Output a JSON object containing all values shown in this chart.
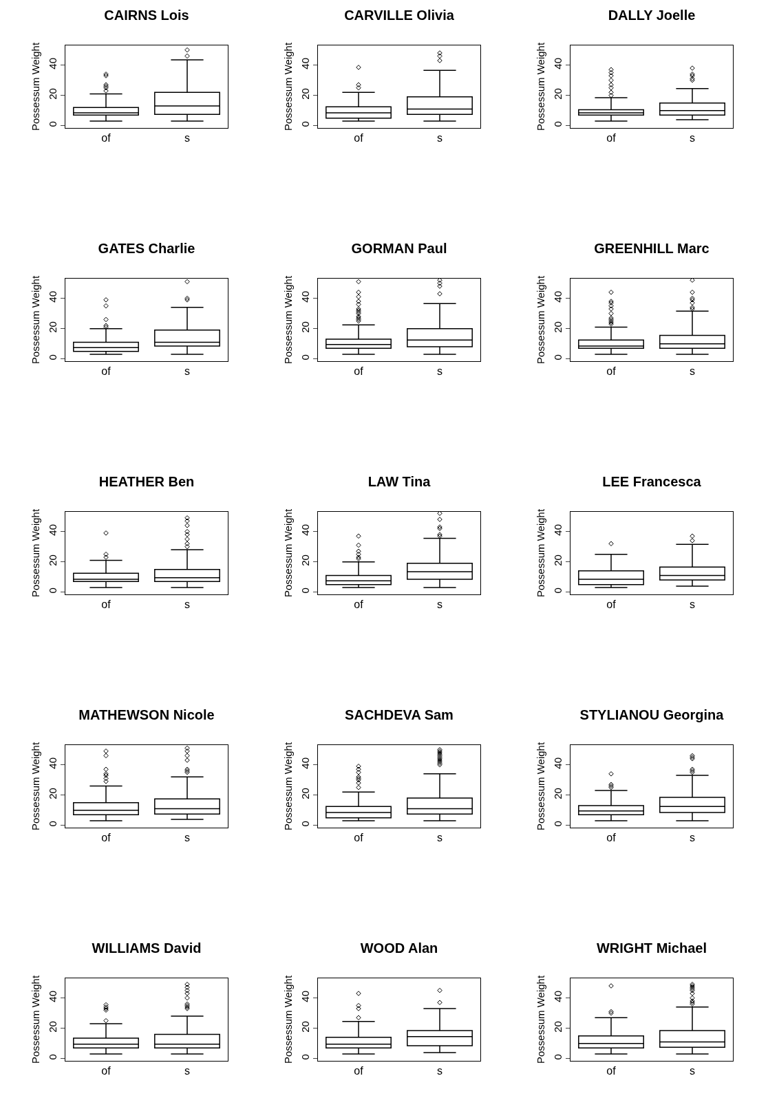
{
  "chart_data": [
    {
      "type": "box",
      "title": "CAIRNS Lois",
      "ylabel": "Possessum Weight",
      "categories": [
        "of",
        "s"
      ],
      "ylim": [
        -1.5,
        53
      ],
      "yticks": [
        0,
        20,
        40
      ],
      "marker": "diamond",
      "boxes": [
        {
          "low": 3,
          "q1": 7,
          "median": 8.5,
          "q3": 12,
          "high": 21,
          "outliers": [
            23,
            25,
            26,
            27,
            33,
            34
          ]
        },
        {
          "low": 3,
          "q1": 7.5,
          "median": 13,
          "q3": 22,
          "high": 43.5,
          "outliers": [
            46,
            50
          ]
        }
      ]
    },
    {
      "type": "box",
      "title": "CARVILLE Olivia",
      "ylabel": "Possessum Weight",
      "categories": [
        "of",
        "s"
      ],
      "ylim": [
        -1.5,
        53
      ],
      "yticks": [
        0,
        20,
        40
      ],
      "marker": "diamond",
      "boxes": [
        {
          "low": 3,
          "q1": 5,
          "median": 8.5,
          "q3": 12.5,
          "high": 22,
          "outliers": [
            25,
            27,
            38.5
          ]
        },
        {
          "low": 3,
          "q1": 7.5,
          "median": 11,
          "q3": 19,
          "high": 36.5,
          "outliers": [
            43,
            46,
            48
          ]
        }
      ]
    },
    {
      "type": "box",
      "title": "DALLY Joelle",
      "ylabel": "Possessum Weight",
      "categories": [
        "of",
        "s"
      ],
      "ylim": [
        -1.5,
        53
      ],
      "yticks": [
        0,
        20,
        40
      ],
      "marker": "diamond",
      "boxes": [
        {
          "low": 3,
          "q1": 7,
          "median": 8.5,
          "q3": 10.5,
          "high": 18.5,
          "outliers": [
            20,
            22,
            25,
            27,
            30,
            33,
            35,
            37
          ]
        },
        {
          "low": 4,
          "q1": 7,
          "median": 10,
          "q3": 15,
          "high": 24.5,
          "outliers": [
            30,
            31,
            33,
            34,
            38
          ]
        }
      ]
    },
    {
      "type": "box",
      "title": "GATES Charlie",
      "ylabel": "Possessum Weight",
      "categories": [
        "of",
        "s"
      ],
      "ylim": [
        -1.5,
        53
      ],
      "yticks": [
        0,
        20,
        40
      ],
      "marker": "diamond",
      "boxes": [
        {
          "low": 3,
          "q1": 5,
          "median": 7.5,
          "q3": 11,
          "high": 20,
          "outliers": [
            21,
            22,
            26,
            35,
            39
          ]
        },
        {
          "low": 3,
          "q1": 8.5,
          "median": 11,
          "q3": 19,
          "high": 34,
          "outliers": [
            39,
            40,
            51
          ]
        }
      ]
    },
    {
      "type": "box",
      "title": "GORMAN Paul",
      "ylabel": "Possessum Weight",
      "categories": [
        "of",
        "s"
      ],
      "ylim": [
        -1.5,
        53
      ],
      "yticks": [
        0,
        20,
        40
      ],
      "marker": "diamond",
      "boxes": [
        {
          "low": 3,
          "q1": 7,
          "median": 9.5,
          "q3": 13,
          "high": 22.5,
          "outliers": [
            25,
            26,
            27,
            28,
            30,
            31,
            32,
            33,
            36,
            38,
            41,
            44,
            51
          ]
        },
        {
          "low": 3,
          "q1": 8,
          "median": 12.5,
          "q3": 20,
          "high": 36.5,
          "outliers": [
            43,
            48,
            50,
            52
          ]
        }
      ]
    },
    {
      "type": "box",
      "title": "GREENHILL Marc",
      "ylabel": "Possessum Weight",
      "categories": [
        "of",
        "s"
      ],
      "ylim": [
        -1.5,
        53
      ],
      "yticks": [
        0,
        20,
        40
      ],
      "marker": "diamond",
      "boxes": [
        {
          "low": 3,
          "q1": 7,
          "median": 8.5,
          "q3": 12.5,
          "high": 21,
          "outliers": [
            23,
            24,
            25,
            26,
            27,
            30,
            33,
            35,
            37,
            38,
            44
          ]
        },
        {
          "low": 3,
          "q1": 7,
          "median": 10,
          "q3": 15.5,
          "high": 31.5,
          "outliers": [
            33,
            34,
            37,
            39,
            40,
            44,
            52
          ]
        }
      ]
    },
    {
      "type": "box",
      "title": "HEATHER Ben",
      "ylabel": "Possessum Weight",
      "categories": [
        "of",
        "s"
      ],
      "ylim": [
        -1.5,
        53
      ],
      "yticks": [
        0,
        20,
        40
      ],
      "marker": "diamond",
      "boxes": [
        {
          "low": 3,
          "q1": 7,
          "median": 8.5,
          "q3": 12.5,
          "high": 21,
          "outliers": [
            23,
            25,
            39
          ]
        },
        {
          "low": 3,
          "q1": 7,
          "median": 9.5,
          "q3": 15,
          "high": 28,
          "outliers": [
            30,
            32,
            35,
            38,
            40,
            44,
            47,
            49
          ]
        }
      ]
    },
    {
      "type": "box",
      "title": "LAW Tina",
      "ylabel": "Possessum Weight",
      "categories": [
        "of",
        "s"
      ],
      "ylim": [
        -1.5,
        53
      ],
      "yticks": [
        0,
        20,
        40
      ],
      "marker": "diamond",
      "boxes": [
        {
          "low": 3,
          "q1": 5,
          "median": 7.5,
          "q3": 11,
          "high": 20,
          "outliers": [
            22,
            23,
            25,
            27,
            31,
            37
          ]
        },
        {
          "low": 3,
          "q1": 8.5,
          "median": 13.5,
          "q3": 19,
          "high": 35.5,
          "outliers": [
            37,
            38,
            42,
            43,
            48,
            52
          ]
        }
      ]
    },
    {
      "type": "box",
      "title": "LEE Francesca",
      "ylabel": "Possessum Weight",
      "categories": [
        "of",
        "s"
      ],
      "ylim": [
        -1.5,
        53
      ],
      "yticks": [
        0,
        20,
        40
      ],
      "marker": "diamond",
      "boxes": [
        {
          "low": 3,
          "q1": 5,
          "median": 8.5,
          "q3": 14,
          "high": 25,
          "outliers": [
            32
          ]
        },
        {
          "low": 4,
          "q1": 8,
          "median": 11,
          "q3": 16.5,
          "high": 31.5,
          "outliers": [
            34,
            37
          ]
        }
      ]
    },
    {
      "type": "box",
      "title": "MATHEWSON Nicole",
      "ylabel": "Possessum Weight",
      "categories": [
        "of",
        "s"
      ],
      "ylim": [
        -1.5,
        53
      ],
      "yticks": [
        0,
        20,
        40
      ],
      "marker": "diamond",
      "boxes": [
        {
          "low": 3,
          "q1": 7,
          "median": 10,
          "q3": 15,
          "high": 26,
          "outliers": [
            29,
            31,
            33,
            34,
            37,
            46,
            49
          ]
        },
        {
          "low": 4,
          "q1": 7.5,
          "median": 11,
          "q3": 17.5,
          "high": 32,
          "outliers": [
            35,
            36,
            37,
            43,
            46,
            49,
            51
          ]
        }
      ]
    },
    {
      "type": "box",
      "title": "SACHDEVA Sam",
      "ylabel": "Possessum Weight",
      "categories": [
        "of",
        "s"
      ],
      "ylim": [
        -1.5,
        53
      ],
      "yticks": [
        0,
        20,
        40
      ],
      "marker": "diamond",
      "boxes": [
        {
          "low": 3,
          "q1": 5,
          "median": 8.5,
          "q3": 12.5,
          "high": 22,
          "outliers": [
            25,
            28,
            30,
            31,
            32,
            35,
            37,
            39
          ]
        },
        {
          "low": 3,
          "q1": 7.5,
          "median": 11,
          "q3": 18,
          "high": 34,
          "outliers": [
            40,
            41,
            42,
            43,
            44,
            45,
            46,
            47,
            48,
            49,
            50
          ]
        }
      ]
    },
    {
      "type": "box",
      "title": "STYLIANOU Georgina",
      "ylabel": "Possessum Weight",
      "categories": [
        "of",
        "s"
      ],
      "ylim": [
        -1.5,
        53
      ],
      "yticks": [
        0,
        20,
        40
      ],
      "marker": "diamond",
      "boxes": [
        {
          "low": 3,
          "q1": 7,
          "median": 9.5,
          "q3": 13,
          "high": 23,
          "outliers": [
            25,
            26,
            27,
            34
          ]
        },
        {
          "low": 3,
          "q1": 8.5,
          "median": 12.5,
          "q3": 18.5,
          "high": 33,
          "outliers": [
            35,
            36,
            37,
            44,
            45,
            46
          ]
        }
      ]
    },
    {
      "type": "box",
      "title": "WILLIAMS David",
      "ylabel": "Possessum Weight",
      "categories": [
        "of",
        "s"
      ],
      "ylim": [
        -1.5,
        53
      ],
      "yticks": [
        0,
        20,
        40
      ],
      "marker": "diamond",
      "boxes": [
        {
          "low": 3,
          "q1": 7,
          "median": 9.5,
          "q3": 13.5,
          "high": 23,
          "outliers": [
            25,
            32,
            33,
            34,
            35.5
          ]
        },
        {
          "low": 3,
          "q1": 7,
          "median": 9.5,
          "q3": 16,
          "high": 28,
          "outliers": [
            33,
            34,
            35,
            36,
            40,
            43,
            45,
            47,
            49
          ]
        }
      ]
    },
    {
      "type": "box",
      "title": "WOOD Alan",
      "ylabel": "Possessum Weight",
      "categories": [
        "of",
        "s"
      ],
      "ylim": [
        -1.5,
        53
      ],
      "yticks": [
        0,
        20,
        40
      ],
      "marker": "diamond",
      "boxes": [
        {
          "low": 3,
          "q1": 7,
          "median": 9.5,
          "q3": 14,
          "high": 24.5,
          "outliers": [
            27,
            33,
            35,
            43
          ]
        },
        {
          "low": 4,
          "q1": 8.5,
          "median": 14.5,
          "q3": 18.5,
          "high": 33,
          "outliers": [
            37,
            45
          ]
        }
      ]
    },
    {
      "type": "box",
      "title": "WRIGHT Michael",
      "ylabel": "Possessum Weight",
      "categories": [
        "of",
        "s"
      ],
      "ylim": [
        -1.5,
        53
      ],
      "yticks": [
        0,
        20,
        40
      ],
      "marker": "diamond",
      "boxes": [
        {
          "low": 3,
          "q1": 7,
          "median": 10,
          "q3": 15,
          "high": 27,
          "outliers": [
            30,
            31,
            48
          ]
        },
        {
          "low": 3,
          "q1": 7.5,
          "median": 11,
          "q3": 18.5,
          "high": 34,
          "outliers": [
            36,
            37,
            38,
            40,
            43,
            45,
            46,
            47,
            48,
            49
          ]
        }
      ]
    }
  ]
}
